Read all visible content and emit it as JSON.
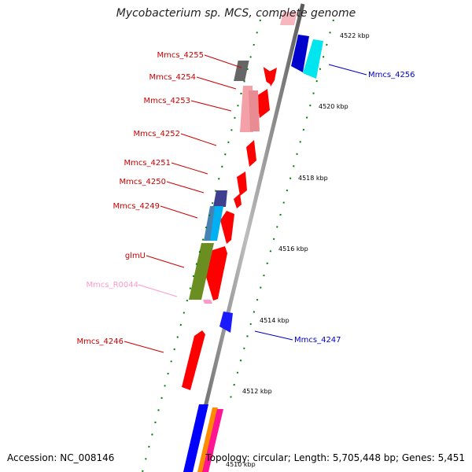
{
  "title": "Mycobacterium sp. MCS, complete genome",
  "footer": {
    "accession": "Accession: NC_008146",
    "summary": "Topology: circular; Length: 5,705,448 bp; Genes: 5,451"
  },
  "colors": {
    "backbone": "#7f7f7f",
    "tick": "#008000",
    "forward_label": "#cc0000",
    "reverse_label": "#0000cc",
    "rna_label": "#ff99cc"
  },
  "ticks": [
    "4522 kbp",
    "4520 kbp",
    "4518 kbp",
    "4516 kbp",
    "4514 kbp",
    "4512 kbp",
    "4510 kbp"
  ],
  "gene_labels": [
    {
      "id": "l4255",
      "text": "Mmcs_4255",
      "color": "#cc0000"
    },
    {
      "id": "l4254",
      "text": "Mmcs_4254",
      "color": "#cc0000"
    },
    {
      "id": "l4253",
      "text": "Mmcs_4253",
      "color": "#cc0000"
    },
    {
      "id": "l4252",
      "text": "Mmcs_4252",
      "color": "#cc0000"
    },
    {
      "id": "l4251",
      "text": "Mmcs_4251",
      "color": "#cc0000"
    },
    {
      "id": "l4250",
      "text": "Mmcs_4250",
      "color": "#cc0000"
    },
    {
      "id": "l4249",
      "text": "Mmcs_4249",
      "color": "#cc0000"
    },
    {
      "id": "lglmu",
      "text": "glmU",
      "color": "#cc0000"
    },
    {
      "id": "lr0044",
      "text": "Mmcs_R0044",
      "color": "#ff99cc"
    },
    {
      "id": "l4246",
      "text": "Mmcs_4246",
      "color": "#cc0000"
    },
    {
      "id": "l4256",
      "text": "Mmcs_4256",
      "color": "#0000cc"
    },
    {
      "id": "l4247",
      "text": "Mmcs_4247",
      "color": "#0000cc"
    }
  ]
}
